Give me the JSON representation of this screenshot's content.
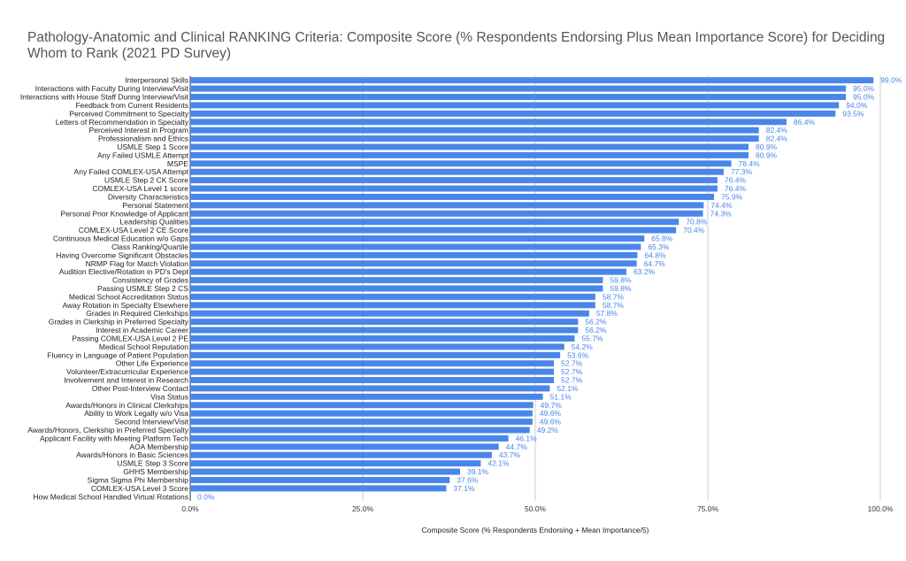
{
  "chart_data": {
    "type": "bar",
    "orientation": "horizontal",
    "title": "Pathology-Anatomic and Clinical RANKING Criteria: Composite Score (% Respondents Endorsing Plus Mean Importance Score) for Deciding Whom to Rank (2021 PD Survey)",
    "xlabel": "Composite Score (% Respondents Endorsing + Mean Importance/5)",
    "ylabel": "",
    "xlim": [
      0,
      100
    ],
    "x_ticks": [
      "0.0%",
      "25.0%",
      "50.0%",
      "75.0%",
      "100.0%"
    ],
    "grid": "vertical",
    "bar_color": "#4a86e8",
    "label_color": "#4a86e8",
    "categories": [
      "Interpersonal Skills",
      "Interactions with Faculty During Interview/Visit",
      "Interactions with House Staff During Interview/Visit",
      "Feedback from Current Residents",
      "Perceived Commitment to Specialty",
      "Letters of Recommendation in Specialty",
      "Perceived Interest in Program",
      "Professionalism and Ethics",
      "USMLE Step 1 Score",
      "Any Failed USMLE Attempt",
      "MSPE",
      "Any Failed COMLEX-USA Attempt",
      "USMLE Step 2 CK Score",
      "COMLEX-USA Level 1 score",
      "Diversity Characteristics",
      "Personal Statement",
      "Personal Prior Knowledge of Applicant",
      "Leadership Qualities",
      "COMLEX-USA Level 2 CE Score",
      "Continuous Medical Education w/o Gaps",
      "Class Ranking/Quartile",
      "Having Overcome Significant Obstacles",
      "NRMP Flag for Match Violation",
      "Audition Elective/Rotation in PD's Dept",
      "Consistency of Grades",
      "Passing USMLE Step 2 CS",
      "Medical School Accreditation Status",
      "Away Rotation in Specialty Elsewhere",
      "Grades in Required Clerkships",
      "Grades in Clerkship in Preferred Specialty",
      "Interest in Academic Career",
      "Passing COMLEX-USA Level 2 PE",
      "Medical School Reputation",
      "Fluency in Language of Patient Population",
      "Other Life Experience",
      "Volunteer/Extracurricular Experience",
      "Involvement and Interest in Research",
      "Other Post-Interview Contact",
      "Visa Status",
      "Awards/Honors in Clinical Clerkships",
      "Ability to Work Legally w/o Visa",
      "Second Interview/Visit",
      "Awards/Honors, Clerkship in Preferred Specialty",
      "Applicant Facility with Meeting Platform Tech",
      "AOA Membership",
      "Awards/Honors in Basic Sciences",
      "USMLE Step 3 Score",
      "GHHS Membership",
      "Sigma Sigma Phi Membership",
      "COMLEX-USA Level 3 Score",
      "How Medical School Handled Virtual Rotations"
    ],
    "values": [
      99.0,
      95.0,
      95.0,
      94.0,
      93.5,
      86.4,
      82.4,
      82.4,
      80.9,
      80.9,
      78.4,
      77.3,
      76.4,
      76.4,
      75.9,
      74.4,
      74.3,
      70.8,
      70.4,
      65.8,
      65.3,
      64.8,
      64.7,
      63.2,
      59.8,
      59.8,
      58.7,
      58.7,
      57.8,
      56.2,
      56.2,
      55.7,
      54.2,
      53.6,
      52.7,
      52.7,
      52.7,
      52.1,
      51.1,
      49.7,
      49.6,
      49.6,
      49.2,
      46.1,
      44.7,
      43.7,
      42.1,
      39.1,
      37.6,
      37.1,
      0.0
    ],
    "value_labels": [
      "99.0%",
      "95.0%",
      "95.0%",
      "94.0%",
      "93.5%",
      "86.4%",
      "82.4%",
      "82.4%",
      "80.9%",
      "80.9%",
      "78.4%",
      "77.3%",
      "76.4%",
      "76.4%",
      "75.9%",
      "74.4%",
      "74.3%",
      "70.8%",
      "70.4%",
      "65.8%",
      "65.3%",
      "64.8%",
      "64.7%",
      "63.2%",
      "59.8%",
      "59.8%",
      "58.7%",
      "58.7%",
      "57.8%",
      "56.2%",
      "56.2%",
      "55.7%",
      "54.2%",
      "53.6%",
      "52.7%",
      "52.7%",
      "52.7%",
      "52.1%",
      "51.1%",
      "49.7%",
      "49.6%",
      "49.6%",
      "49.2%",
      "46.1%",
      "44.7%",
      "43.7%",
      "42.1%",
      "39.1%",
      "37.6%",
      "37.1%",
      "0.0%"
    ]
  }
}
